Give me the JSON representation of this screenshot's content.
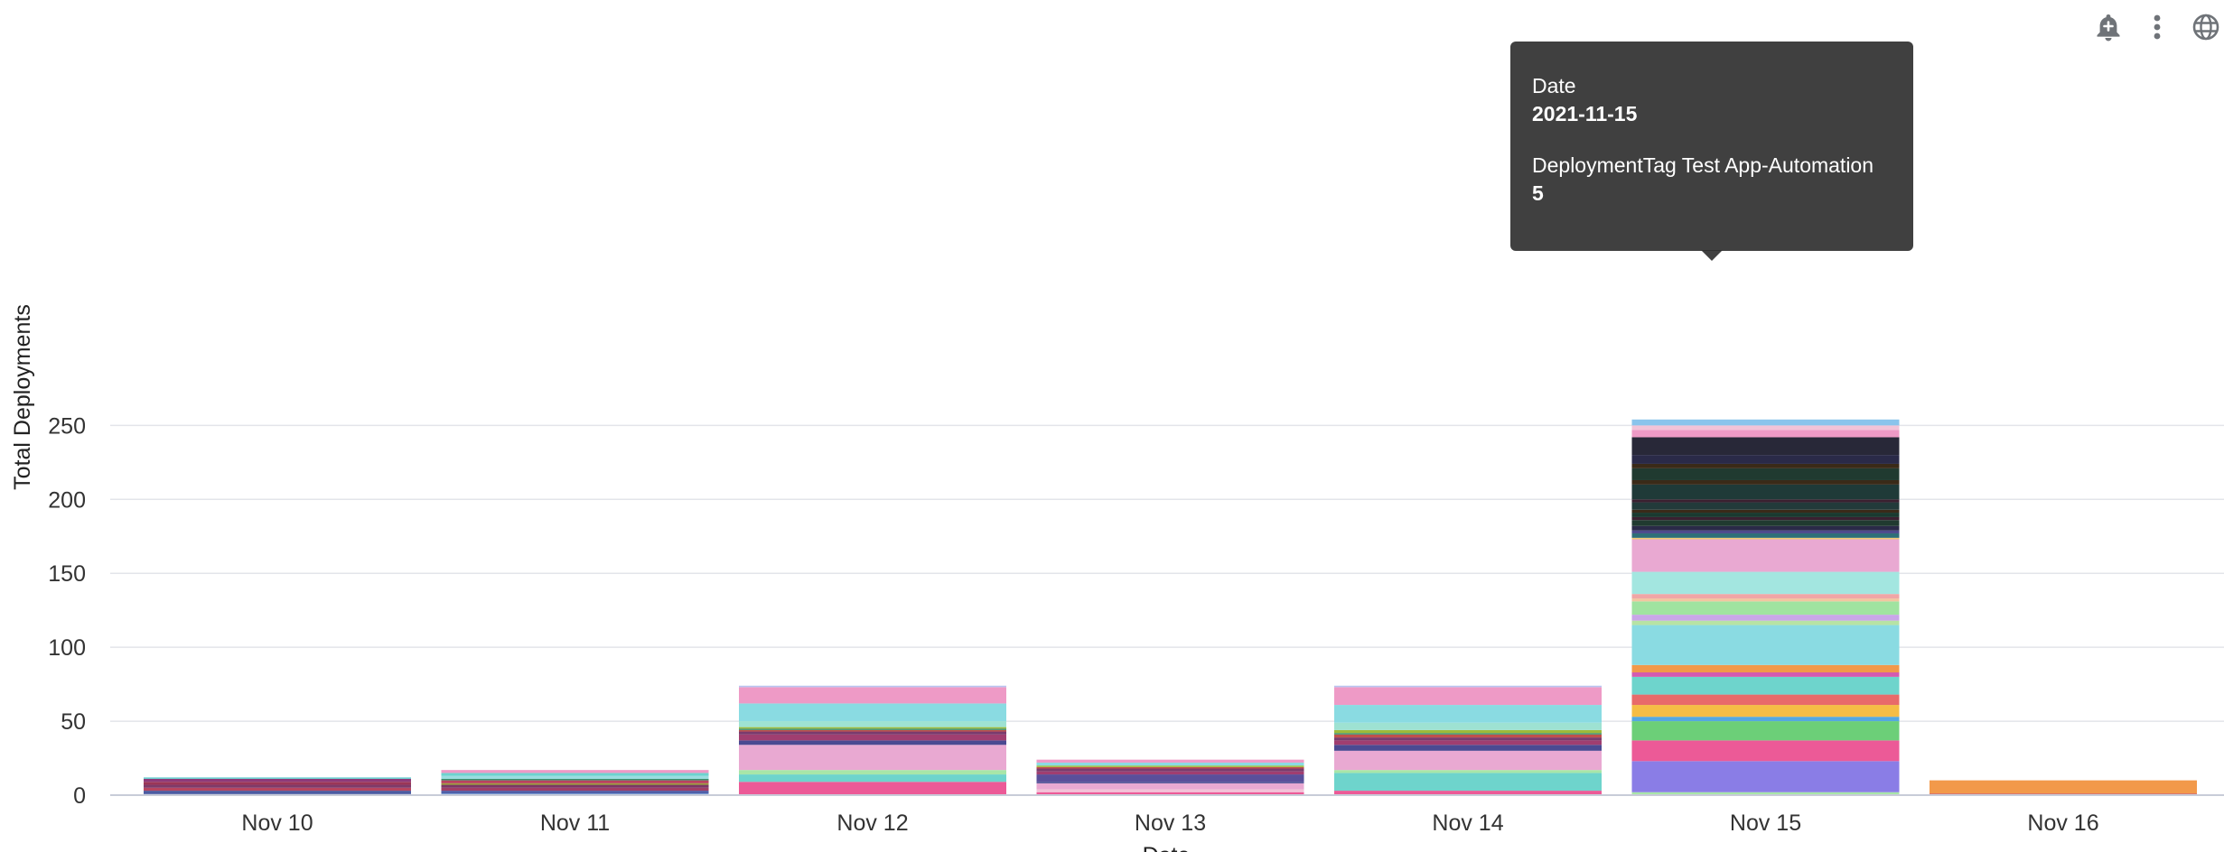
{
  "toolbar": {
    "icons": [
      "add-alert-icon",
      "more-options-icon",
      "globe-icon"
    ]
  },
  "tooltip": {
    "date_key": "Date",
    "date_value": "2021-11-15",
    "series_key": "DeploymentTag Test App-Automation",
    "series_value": "5"
  },
  "chart_data": {
    "type": "bar",
    "stacked": true,
    "xlabel": "Date",
    "ylabel": "Total Deployments",
    "ylim": [
      0,
      265
    ],
    "yticks": [
      0,
      50,
      100,
      150,
      200,
      250
    ],
    "grid": true,
    "categories": [
      "Nov 10",
      "Nov 11",
      "Nov 12",
      "Nov 13",
      "Nov 14",
      "Nov 15",
      "Nov 16"
    ],
    "stacks": [
      [
        {
          "value": 1,
          "color": "#5b6bb0"
        },
        {
          "value": 2,
          "color": "#4b5aa0"
        },
        {
          "value": 2,
          "color": "#b7455f"
        },
        {
          "value": 2,
          "color": "#7e3b69"
        },
        {
          "value": 2,
          "color": "#9a3657"
        },
        {
          "value": 2,
          "color": "#8e3a7a"
        },
        {
          "value": 1,
          "color": "#6ccfd0"
        }
      ],
      [
        {
          "value": 1,
          "color": "#7fb0e8"
        },
        {
          "value": 2,
          "color": "#4f5fa8"
        },
        {
          "value": 2,
          "color": "#a03e66"
        },
        {
          "value": 2,
          "color": "#7a3766"
        },
        {
          "value": 1,
          "color": "#9aa33b"
        },
        {
          "value": 2,
          "color": "#b8435e"
        },
        {
          "value": 1,
          "color": "#3a8f6c"
        },
        {
          "value": 2,
          "color": "#9adde0"
        },
        {
          "value": 2,
          "color": "#6cd3cf"
        },
        {
          "value": 2,
          "color": "#ee9ac6"
        }
      ],
      [
        {
          "value": 9,
          "color": "#ec5a97"
        },
        {
          "value": 5,
          "color": "#6ed4cc"
        },
        {
          "value": 3,
          "color": "#a8e6a8"
        },
        {
          "value": 17,
          "color": "#e9a9d2"
        },
        {
          "value": 3,
          "color": "#4b4a92"
        },
        {
          "value": 4,
          "color": "#a03e70"
        },
        {
          "value": 2,
          "color": "#7a3b6d"
        },
        {
          "value": 1,
          "color": "#c0504c"
        },
        {
          "value": 1,
          "color": "#3f8f6c"
        },
        {
          "value": 1,
          "color": "#9dbb3a"
        },
        {
          "value": 4,
          "color": "#9ee2d2"
        },
        {
          "value": 12,
          "color": "#8adbe2"
        },
        {
          "value": 11,
          "color": "#ee9ac6"
        },
        {
          "value": 1,
          "color": "#b9c4f0"
        }
      ],
      [
        {
          "value": 2,
          "color": "#ec5a97"
        },
        {
          "value": 2,
          "color": "#f2c3d8"
        },
        {
          "value": 4,
          "color": "#e9a9d2"
        },
        {
          "value": 1,
          "color": "#4b4a92"
        },
        {
          "value": 5,
          "color": "#5a4f9a"
        },
        {
          "value": 2,
          "color": "#a03e70"
        },
        {
          "value": 2,
          "color": "#7a3b6d"
        },
        {
          "value": 1,
          "color": "#c0504c"
        },
        {
          "value": 1,
          "color": "#9dbb3a"
        },
        {
          "value": 2,
          "color": "#8adbe2"
        },
        {
          "value": 2,
          "color": "#ee9ac6"
        }
      ],
      [
        {
          "value": 3,
          "color": "#ec5a97"
        },
        {
          "value": 12,
          "color": "#6ed4cc"
        },
        {
          "value": 2,
          "color": "#a8e6a8"
        },
        {
          "value": 13,
          "color": "#e9a9d2"
        },
        {
          "value": 4,
          "color": "#4b4a92"
        },
        {
          "value": 3,
          "color": "#a03e70"
        },
        {
          "value": 2,
          "color": "#7a3b6d"
        },
        {
          "value": 2,
          "color": "#c0504c"
        },
        {
          "value": 1,
          "color": "#3f8f6c"
        },
        {
          "value": 2,
          "color": "#9dbb3a"
        },
        {
          "value": 5,
          "color": "#9ee2d2"
        },
        {
          "value": 12,
          "color": "#8adbe2"
        },
        {
          "value": 12,
          "color": "#ee9ac6"
        },
        {
          "value": 1,
          "color": "#b9c4f0"
        }
      ],
      [
        {
          "value": 2,
          "color": "#a8e6a8"
        },
        {
          "value": 21,
          "color": "#8a7de6"
        },
        {
          "value": 14,
          "color": "#ec5a97"
        },
        {
          "value": 13,
          "color": "#6ccf78"
        },
        {
          "value": 3,
          "color": "#55a8e0"
        },
        {
          "value": 8,
          "color": "#f5bd45"
        },
        {
          "value": 7,
          "color": "#e86a6a"
        },
        {
          "value": 12,
          "color": "#6ed4cc"
        },
        {
          "value": 3,
          "color": "#d45bb0"
        },
        {
          "value": 5,
          "color": "#f2994a"
        },
        {
          "value": 27,
          "color": "#8adbe2"
        },
        {
          "value": 3,
          "color": "#b7e3a4"
        },
        {
          "value": 4,
          "color": "#c9a6e8"
        },
        {
          "value": 9,
          "color": "#a0e3a0"
        },
        {
          "value": 2,
          "color": "#f2c6a0"
        },
        {
          "value": 3,
          "color": "#f0a6a6"
        },
        {
          "value": 15,
          "color": "#a3e6e0"
        },
        {
          "value": 22,
          "color": "#e9a9d2"
        },
        {
          "value": 1,
          "color": "#f0c872"
        },
        {
          "value": 3,
          "color": "#2f6f78"
        },
        {
          "value": 2,
          "color": "#4d4a8c"
        },
        {
          "value": 3,
          "color": "#2a2a48"
        },
        {
          "value": 4,
          "color": "#203a30"
        },
        {
          "value": 2,
          "color": "#3a2030"
        },
        {
          "value": 3,
          "color": "#1a3a30"
        },
        {
          "value": 2,
          "color": "#3a2a18"
        },
        {
          "value": 5,
          "color": "#223a3a"
        },
        {
          "value": 2,
          "color": "#3a2030"
        },
        {
          "value": 10,
          "color": "#1f3a38"
        },
        {
          "value": 3,
          "color": "#3a2a18"
        },
        {
          "value": 8,
          "color": "#203a30"
        },
        {
          "value": 3,
          "color": "#3a2a18"
        },
        {
          "value": 6,
          "color": "#2a2a48"
        },
        {
          "value": 12,
          "color": "#282838"
        },
        {
          "value": 5,
          "color": "#ee9ac6"
        },
        {
          "value": 3,
          "color": "#f2c3d8"
        },
        {
          "value": 4,
          "color": "#8ac4ec"
        }
      ],
      [
        {
          "value": 1,
          "color": "#c0486c"
        },
        {
          "value": 9,
          "color": "#f2994a"
        }
      ]
    ]
  }
}
